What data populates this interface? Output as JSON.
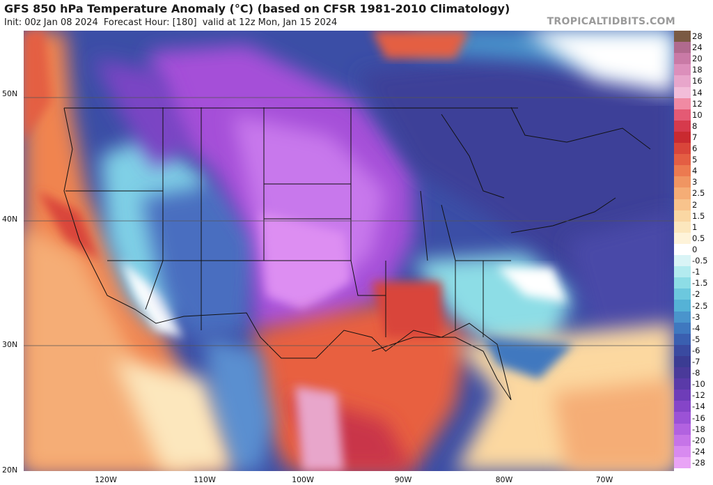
{
  "header": {
    "title": "GFS 850 hPa Temperature Anomaly (°C) (based on CFSR 1981-2010 Climatology)",
    "init": "Init: 00z Jan 08 2024",
    "forecast_hour": "Forecast Hour: [180]",
    "valid": "valid at 12z Mon, Jan 15 2024"
  },
  "watermark": "TROPICALTIDBITS.COM",
  "map": {
    "lat_labels": [
      "50N",
      "40N",
      "30N",
      "20N"
    ],
    "lon_labels": [
      "120W",
      "110W",
      "100W",
      "90W",
      "80W",
      "70W"
    ],
    "lat_range": [
      20,
      55
    ],
    "lon_range": [
      -128,
      -62
    ]
  },
  "colorbar": {
    "labels": [
      "28",
      "24",
      "20",
      "18",
      "16",
      "14",
      "12",
      "10",
      "8",
      "7",
      "6",
      "5",
      "4",
      "3",
      "2.5",
      "2",
      "1.5",
      "1",
      "0.5",
      "0",
      "-0.5",
      "-1",
      "-1.5",
      "-2",
      "-2.5",
      "-3",
      "-4",
      "-5",
      "-6",
      "-7",
      "-8",
      "-10",
      "-12",
      "-14",
      "-16",
      "-18",
      "-20",
      "-24",
      "-28"
    ],
    "colors": [
      "#7a5a43",
      "#b06a8e",
      "#c97aa6",
      "#dc8fbb",
      "#e8a6cb",
      "#f2bdd9",
      "#f08aa3",
      "#e45a74",
      "#d63a4c",
      "#c92a30",
      "#d9453a",
      "#e45e43",
      "#ec7a50",
      "#f09562",
      "#f5ad76",
      "#f8c38c",
      "#fad7a3",
      "#fce7bd",
      "#fef3d9",
      "#ffffff",
      "#d9f4f6",
      "#b3ebef",
      "#8ddde6",
      "#6cc8de",
      "#55b2d6",
      "#4a94cc",
      "#3f78bf",
      "#3a5fb0",
      "#3a4aa0",
      "#3b3c93",
      "#4a3a9a",
      "#5a3aa8",
      "#6e3db8",
      "#8545c8",
      "#9b52d6",
      "#b262e0",
      "#c674e8",
      "#d88af0",
      "#e9a4f6"
    ]
  }
}
